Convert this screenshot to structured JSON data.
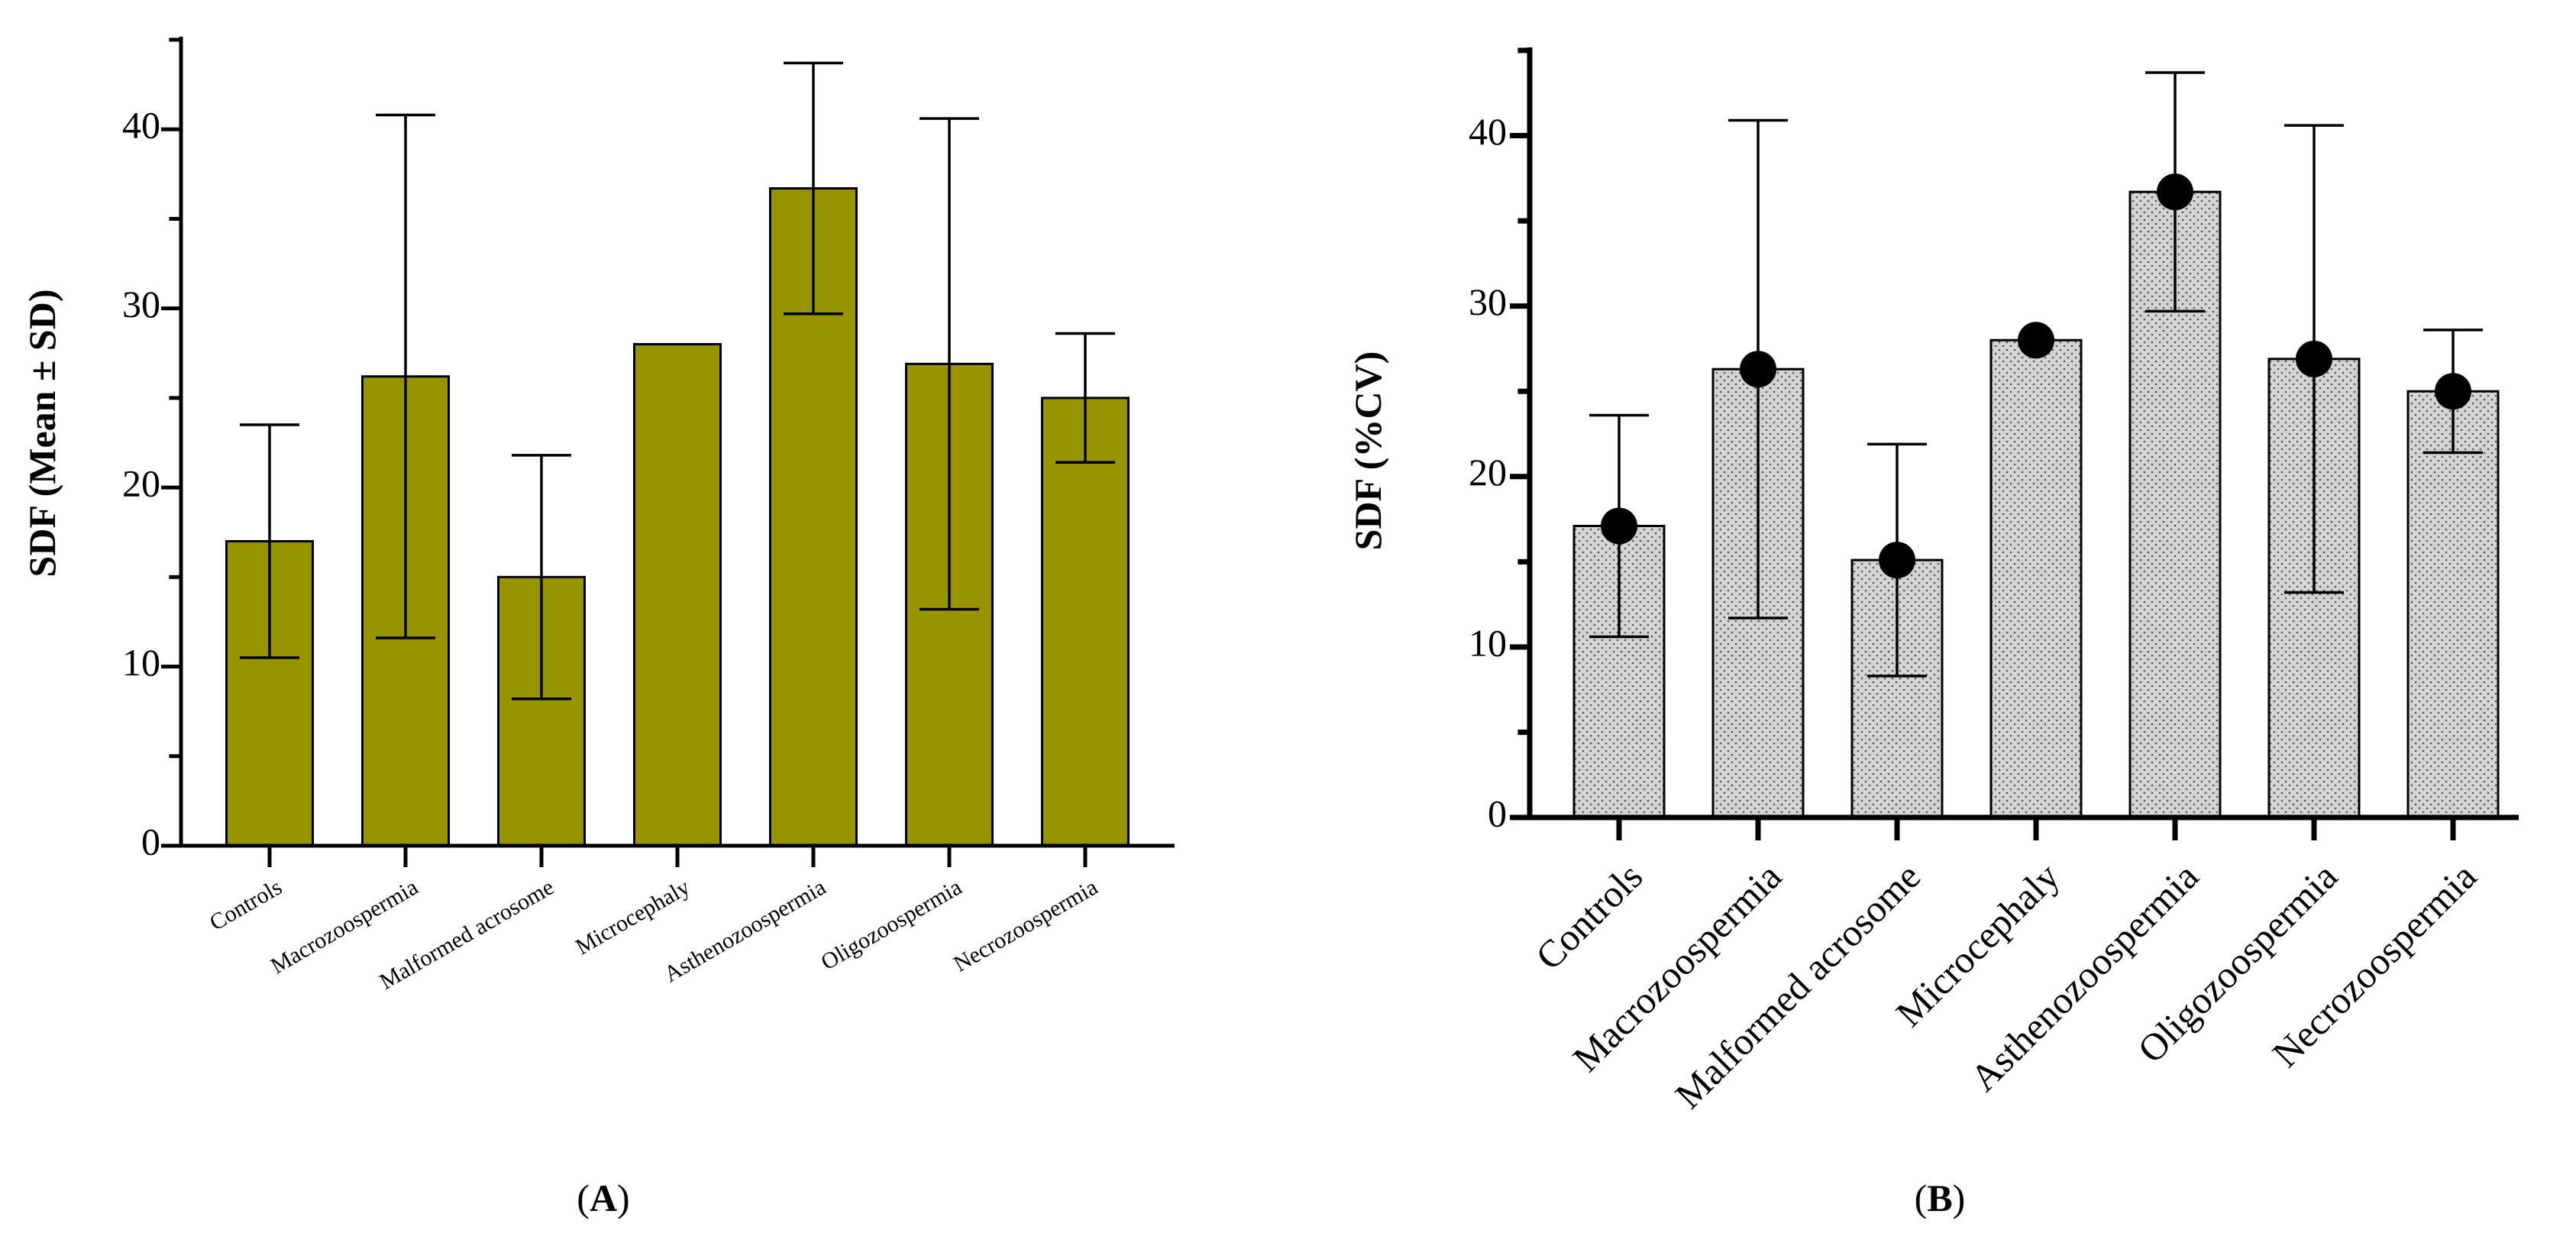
{
  "chart_data": [
    {
      "type": "bar",
      "panel": "A",
      "panel_label_text": "A",
      "categories": [
        "Controls",
        "Macrozoospermia",
        "Malformed acrosome",
        "Microcephaly",
        "Asthenozoospermia",
        "Oligozoospermia",
        "Necrozoospermia"
      ],
      "values": [
        17,
        26.2,
        15,
        28,
        36.7,
        26.9,
        25
      ],
      "error": [
        6.5,
        14.6,
        6.8,
        null,
        7,
        13.7,
        3.6
      ],
      "title": "",
      "xlabel": "",
      "ylabel": "SDF (Mean ± SD)",
      "ylim": [
        0,
        45
      ],
      "yticks": [
        0,
        10,
        20,
        30,
        40
      ],
      "color": "#989400",
      "markers": false
    },
    {
      "type": "bar",
      "panel": "B",
      "panel_label_text": "B",
      "categories": [
        "Controls",
        "Macrozoospermia",
        "Malformed acrosome",
        "Microcephaly",
        "Asthenozoospermia",
        "Oligozoospermia",
        "Necrozoospermia"
      ],
      "values": [
        17.1,
        26.3,
        15.1,
        28,
        36.7,
        26.9,
        25
      ],
      "error": [
        6.5,
        14.6,
        6.8,
        null,
        7,
        13.7,
        3.6
      ],
      "title": "",
      "xlabel": "",
      "ylabel": "SDF (%CV)",
      "ylim": [
        0,
        45
      ],
      "yticks": [
        0,
        10,
        20,
        30,
        40
      ],
      "color": "#d4d4d4",
      "markers": true
    }
  ]
}
